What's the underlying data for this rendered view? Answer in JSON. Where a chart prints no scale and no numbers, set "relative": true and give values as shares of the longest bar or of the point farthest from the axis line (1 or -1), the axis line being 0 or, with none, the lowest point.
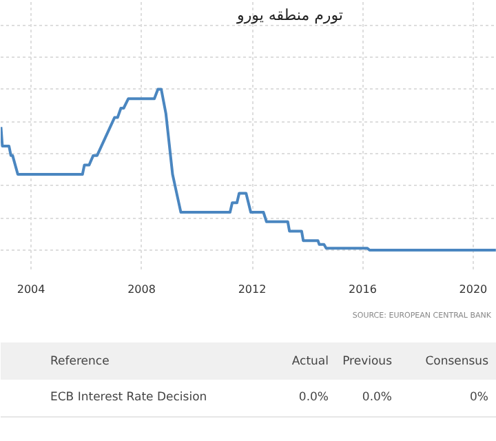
{
  "chart_data": {
    "type": "line",
    "title": "تورم منطقه یورو",
    "relative": true,
    "x": [
      2002.91,
      2002.96,
      2003.2,
      2003.27,
      2003.33,
      2003.52,
      2005.86,
      2005.93,
      2006.1,
      2006.25,
      2006.39,
      2007.02,
      2007.13,
      2007.25,
      2007.35,
      2007.52,
      2008.46,
      2008.59,
      2008.71,
      2008.88,
      2009.12,
      2009.3,
      2009.42,
      2011.2,
      2011.28,
      2011.45,
      2011.53,
      2011.78,
      2011.95,
      2012.41,
      2012.52,
      2013.29,
      2013.35,
      2013.79,
      2013.85,
      2014.38,
      2014.43,
      2014.6,
      2014.68,
      2016.17,
      2016.25,
      2020.82
    ],
    "series": [
      {
        "color": "#4a86c0",
        "values": [
          0.765,
          0.647,
          0.647,
          0.588,
          0.588,
          0.471,
          0.471,
          0.529,
          0.529,
          0.588,
          0.588,
          0.824,
          0.824,
          0.882,
          0.882,
          0.941,
          0.941,
          1.0,
          1.0,
          0.847,
          0.471,
          0.329,
          0.235,
          0.235,
          0.294,
          0.294,
          0.353,
          0.353,
          0.235,
          0.235,
          0.176,
          0.176,
          0.118,
          0.118,
          0.059,
          0.059,
          0.035,
          0.035,
          0.012,
          0.012,
          0.0,
          0.0
        ]
      }
    ],
    "xlim": [
      2002.9,
      2020.85
    ],
    "xticks": [
      2004,
      2008,
      2012,
      2016,
      2020
    ],
    "grid": true,
    "marker": "none",
    "line_style": "solid",
    "annotations": [
      "SOURCE: EUROPEAN CENTRAL BANK",
      "Reference",
      "Actual",
      "Previous",
      "Consensus",
      "ECB Interest Rate Decision",
      "0.0%",
      "0.0%",
      "0%"
    ]
  }
}
